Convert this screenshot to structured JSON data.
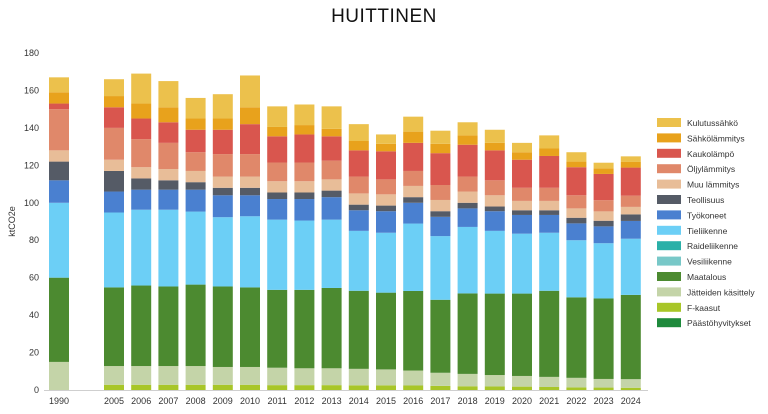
{
  "chart_data": {
    "type": "bar",
    "stacked": true,
    "title": "HUITTINEN",
    "ylabel": "ktCO2e",
    "xlabel": "",
    "ylim": [
      0,
      180
    ],
    "yticks": [
      0,
      20,
      40,
      60,
      80,
      100,
      120,
      140,
      160,
      180
    ],
    "grid": false,
    "legend_position": "right",
    "categories": [
      "1990",
      "2005",
      "2006",
      "2007",
      "2008",
      "2009",
      "2010",
      "2011",
      "2012",
      "2013",
      "2014",
      "2015",
      "2016",
      "2017",
      "2018",
      "2019",
      "2020",
      "2021",
      "2022",
      "2023",
      "2024"
    ],
    "series": [
      {
        "name": "Päästöhyvitykset",
        "color": "#1e8a3c",
        "values": [
          0,
          0,
          0,
          0,
          0,
          0,
          0,
          0,
          0,
          0,
          0,
          0,
          0,
          0,
          0,
          0,
          0,
          0,
          0,
          0,
          0
        ]
      },
      {
        "name": "F-kaasut",
        "color": "#a8c628",
        "values": [
          0,
          2.8,
          2.8,
          2.8,
          2.8,
          2.8,
          2.8,
          2.6,
          2.6,
          2.6,
          2.5,
          2.5,
          2.4,
          2.2,
          2,
          1.9,
          1.8,
          1.6,
          1.4,
          1.3,
          1.2
        ]
      },
      {
        "name": "Jätteiden käsittely",
        "color": "#c4d4a8",
        "values": [
          15,
          10,
          10,
          10,
          10,
          9.5,
          9.5,
          9.3,
          9,
          9,
          8.8,
          8.5,
          8,
          7,
          6.6,
          6.1,
          5.7,
          5.4,
          5.1,
          4.6,
          4.6
        ]
      },
      {
        "name": "Maatalous",
        "color": "#4c8a30",
        "values": [
          45,
          42,
          43,
          42.5,
          43.5,
          43,
          42.5,
          41.6,
          41.9,
          42.9,
          41.7,
          41,
          42.5,
          39,
          43,
          43.5,
          44,
          46,
          43,
          43,
          45
        ]
      },
      {
        "name": "Vesiliikenne",
        "color": "#78c8c8",
        "values": [
          0,
          0,
          0,
          0,
          0,
          0,
          0,
          0,
          0,
          0,
          0,
          0,
          0,
          0,
          0,
          0,
          0,
          0,
          0,
          0,
          0
        ]
      },
      {
        "name": "Raideliikenne",
        "color": "#2ab0a8",
        "values": [
          0,
          0,
          0,
          0,
          0,
          0,
          0,
          0,
          0,
          0,
          0,
          0,
          0,
          0,
          0,
          0,
          0,
          0,
          0,
          0,
          0
        ]
      },
      {
        "name": "Tieliikenne",
        "color": "#6ccff6",
        "values": [
          40,
          40,
          40.5,
          41,
          39,
          37,
          38,
          37.5,
          37,
          36.5,
          32,
          32,
          36,
          34,
          35.5,
          33.5,
          32,
          31,
          30.5,
          29.5,
          30
        ]
      },
      {
        "name": "Työkoneet",
        "color": "#4a80d0",
        "values": [
          12,
          11.2,
          10.7,
          10.7,
          11.7,
          11.7,
          11.2,
          11,
          11.5,
          12,
          11,
          11.5,
          11.1,
          10.3,
          9.9,
          10.5,
          10,
          9.5,
          9,
          9,
          9.5
        ]
      },
      {
        "name": "Teollisuus",
        "color": "#555b66",
        "values": [
          10,
          11,
          6,
          5,
          4,
          4,
          4,
          3.5,
          3.5,
          3.5,
          3,
          3,
          3,
          3,
          3,
          2.5,
          2.5,
          2.5,
          3,
          3,
          3.5
        ]
      },
      {
        "name": "Muu lämmitys",
        "color": "#e8bd98",
        "values": [
          6,
          6,
          6,
          6,
          6,
          6,
          6,
          6,
          6,
          6,
          6,
          6,
          6,
          6,
          6,
          6,
          5,
          5,
          5,
          5,
          4
        ]
      },
      {
        "name": "Öljylämmitys",
        "color": "#e0886a",
        "values": [
          22,
          17,
          15,
          14,
          10,
          12,
          12,
          10,
          10,
          10,
          9,
          8,
          8,
          8,
          8,
          8,
          7,
          7,
          7,
          6,
          6
        ]
      },
      {
        "name": "Kaukolämpö",
        "color": "#d9564e",
        "values": [
          3,
          11,
          11,
          11,
          12,
          13,
          16,
          14,
          15,
          13,
          14,
          15,
          15,
          17,
          17,
          16,
          15,
          17,
          15,
          14,
          15
        ]
      },
      {
        "name": "Sähkölämmitys",
        "color": "#e8a21c",
        "values": [
          6,
          6,
          8,
          8,
          6,
          6,
          9,
          5,
          5,
          4,
          5,
          4,
          6,
          5,
          5,
          4,
          4,
          4,
          3,
          3,
          3
        ]
      },
      {
        "name": "Kulutussähkö",
        "color": "#ecc14c",
        "values": [
          8,
          9,
          16,
          14,
          11,
          13,
          17,
          11,
          11,
          12,
          9,
          5,
          8,
          7,
          7,
          7,
          5,
          7,
          5,
          3,
          3
        ]
      }
    ]
  }
}
